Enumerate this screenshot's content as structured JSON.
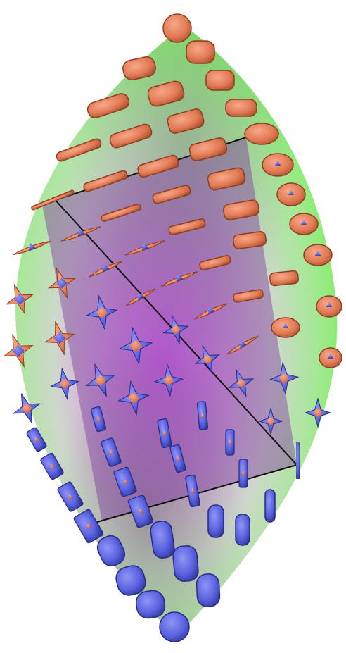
{
  "figure": {
    "background": "#ffffff",
    "colors": {
      "lens_edge": "#7cf25c",
      "lens_mid": "#c9d9c4",
      "lens_center": "#e070ff",
      "plane": "#8a4fa8",
      "plane_line": "#111111",
      "glyph_orange": "#e27a55",
      "glyph_orange_dark": "#a8502f",
      "glyph_blue": "#5a62e0",
      "glyph_blue_dark": "#2f3598"
    },
    "glyph_kinds": [
      "sphere",
      "disk",
      "oblate-disk",
      "spindle",
      "star",
      "tilted-plate",
      "capsule-upright",
      "capsule-lying",
      "rod"
    ]
  }
}
